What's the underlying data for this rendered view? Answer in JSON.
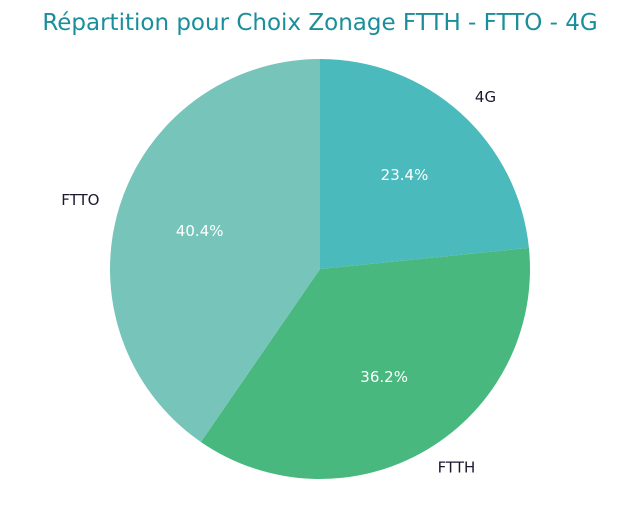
{
  "chart_data": {
    "type": "pie",
    "title": "Répartition pour Choix Zonage FTTH - FTTO - 4G",
    "title_color": "#1a8f9b",
    "start_angle_deg": 90,
    "direction": "clockwise",
    "slices": [
      {
        "label": "4G",
        "value": 23.4,
        "pct_label": "23.4%",
        "color": "#4bbabc"
      },
      {
        "label": "FTTH",
        "value": 36.2,
        "pct_label": "36.2%",
        "color": "#49b87e"
      },
      {
        "label": "FTTO",
        "value": 40.4,
        "pct_label": "40.4%",
        "color": "#77c4bb"
      }
    ]
  }
}
